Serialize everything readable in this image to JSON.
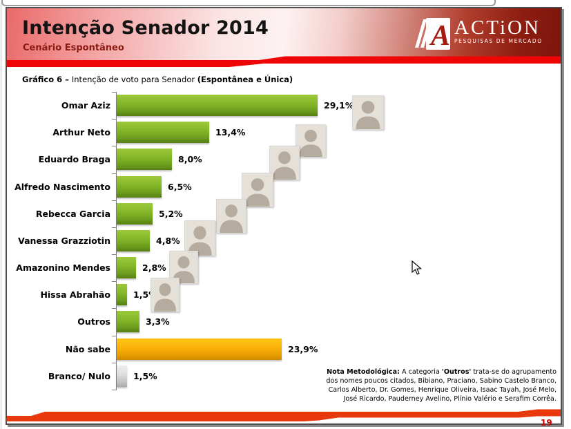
{
  "header": {
    "title": "Intenção Senador 2014",
    "subtitle": "Cenário Espontâneo",
    "logo": {
      "brand": "ACTiON",
      "tagline": "PESQUISAS DE MERCADO"
    }
  },
  "chart_heading": {
    "prefix": "Gráfico 6 – ",
    "text": "Intenção de voto para Senador ",
    "suffix": "(Espontânea e Única)"
  },
  "chart_data": {
    "type": "bar",
    "orientation": "horizontal",
    "categories": [
      "Omar Aziz",
      "Arthur Neto",
      "Eduardo Braga",
      "Alfredo Nascimento",
      "Rebecca Garcia",
      "Vanessa Grazziotin",
      "Amazonino Mendes",
      "Hissa Abrahão",
      "Outros",
      "Não sabe",
      "Branco/ Nulo"
    ],
    "values": [
      29.1,
      13.4,
      8.0,
      6.5,
      5.2,
      4.8,
      2.8,
      1.5,
      3.3,
      23.9,
      1.5
    ],
    "value_labels": [
      "29,1%",
      "13,4%",
      "8,0%",
      "6,5%",
      "5,2%",
      "4,8%",
      "2,8%",
      "1,5%",
      "3,3%",
      "23,9%",
      "1,5%"
    ],
    "bar_colors": [
      "green",
      "green",
      "green",
      "green",
      "green",
      "green",
      "green",
      "green",
      "green",
      "orange",
      "silver"
    ],
    "has_photo": [
      true,
      true,
      true,
      true,
      true,
      true,
      true,
      true,
      false,
      false,
      false
    ],
    "xlim": [
      0,
      32
    ],
    "grid": false,
    "legend": false
  },
  "note": {
    "label": "Nota Metodológica:",
    "part1": " A categoria ",
    "bold": "'Outros'",
    "part2": " trata-se do agrupamento dos nomes poucos citados, Bibiano, Praciano, Sabino Castelo Branco, Carlos Alberto, Dr. Gomes, Henrique Oliveira, Isaac Tayah, José Melo, José Ricardo, Pauderney Avelino, Plínio Valério e Serafim Corrêa."
  },
  "page_number": "19",
  "colors": {
    "accent_red": "#ee0505",
    "brand_dark_red": "#7c150c",
    "bar_green_top": "#9cc93a",
    "bar_green_bottom": "#567e12",
    "bar_orange_top": "#ffc614",
    "bar_orange_bottom": "#d18a00",
    "bar_silver_top": "#efefef",
    "bar_silver_bottom": "#ababab",
    "page_number_red": "#cc0000"
  }
}
